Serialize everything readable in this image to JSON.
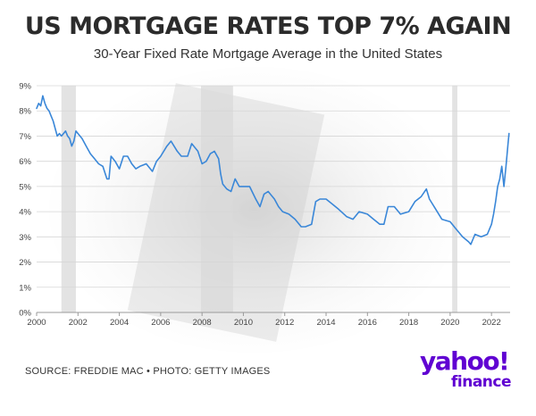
{
  "header": {
    "title": "US MORTGAGE RATES TOP 7% AGAIN",
    "subtitle": "30-Year Fixed Rate Mortgage Average in the United States"
  },
  "footer": {
    "source": "SOURCE: FREDDIE MAC • PHOTO: GETTY IMAGES",
    "logo_word": "yahoo!",
    "logo_sub": "finance"
  },
  "colors": {
    "line": "#3a87d8",
    "grid": "#d6d6d6",
    "recession": "#d9d9d9",
    "logo": "#6001d2"
  },
  "chart_data": {
    "type": "line",
    "title": "US MORTGAGE RATES TOP 7% AGAIN",
    "subtitle": "30-Year Fixed Rate Mortgage Average in the United States",
    "xlabel": "",
    "ylabel": "",
    "xlim": [
      2000,
      2022.9
    ],
    "ylim": [
      0,
      9
    ],
    "x_ticks": [
      2000,
      2002,
      2004,
      2006,
      2008,
      2010,
      2012,
      2014,
      2016,
      2018,
      2020,
      2022
    ],
    "y_ticks": [
      0,
      1,
      2,
      3,
      4,
      5,
      6,
      7,
      8,
      9
    ],
    "y_tick_labels": [
      "0%",
      "1%",
      "2%",
      "3%",
      "4%",
      "5%",
      "6%",
      "7%",
      "8%",
      "9%"
    ],
    "grid": true,
    "legend": "none",
    "shaded_periods": [
      [
        2001.2,
        2001.9
      ],
      [
        2007.95,
        2009.5
      ],
      [
        2020.1,
        2020.35
      ]
    ],
    "series": [
      {
        "x": [
          2000.0,
          2000.1,
          2000.2,
          2000.3,
          2000.4,
          2000.5,
          2000.6,
          2000.7,
          2000.8,
          2000.9,
          2001.0,
          2001.1,
          2001.2,
          2001.3,
          2001.4,
          2001.5,
          2001.6,
          2001.7,
          2001.8,
          2001.9,
          2002.0,
          2002.2,
          2002.4,
          2002.6,
          2002.8,
          2003.0,
          2003.2,
          2003.4,
          2003.5,
          2003.6,
          2003.8,
          2004.0,
          2004.2,
          2004.4,
          2004.6,
          2004.8,
          2005.0,
          2005.3,
          2005.6,
          2005.8,
          2006.0,
          2006.3,
          2006.5,
          2006.8,
          2007.0,
          2007.3,
          2007.5,
          2007.8,
          2008.0,
          2008.2,
          2008.4,
          2008.6,
          2008.8,
          2008.9,
          2009.0,
          2009.2,
          2009.4,
          2009.6,
          2009.8,
          2010.0,
          2010.3,
          2010.6,
          2010.8,
          2011.0,
          2011.2,
          2011.5,
          2011.7,
          2011.9,
          2012.2,
          2012.5,
          2012.8,
          2013.0,
          2013.3,
          2013.5,
          2013.7,
          2014.0,
          2014.3,
          2014.6,
          2015.0,
          2015.3,
          2015.6,
          2016.0,
          2016.3,
          2016.6,
          2016.8,
          2017.0,
          2017.3,
          2017.6,
          2018.0,
          2018.3,
          2018.6,
          2018.85,
          2019.0,
          2019.3,
          2019.6,
          2020.0,
          2020.3,
          2020.6,
          2020.9,
          2021.0,
          2021.2,
          2021.5,
          2021.8,
          2022.0,
          2022.1,
          2022.2,
          2022.3,
          2022.4,
          2022.5,
          2022.6,
          2022.7,
          2022.8,
          2022.85
        ],
        "values": [
          8.1,
          8.3,
          8.2,
          8.6,
          8.3,
          8.1,
          8.0,
          7.8,
          7.6,
          7.3,
          7.0,
          7.1,
          7.0,
          7.1,
          7.2,
          7.0,
          6.9,
          6.6,
          6.8,
          7.2,
          7.1,
          6.9,
          6.6,
          6.3,
          6.1,
          5.9,
          5.8,
          5.3,
          5.3,
          6.2,
          6.0,
          5.7,
          6.2,
          6.2,
          5.9,
          5.7,
          5.8,
          5.9,
          5.6,
          6.0,
          6.2,
          6.6,
          6.8,
          6.4,
          6.2,
          6.2,
          6.7,
          6.4,
          5.9,
          6.0,
          6.3,
          6.4,
          6.1,
          5.5,
          5.1,
          4.9,
          4.8,
          5.3,
          5.0,
          5.0,
          5.0,
          4.5,
          4.2,
          4.7,
          4.8,
          4.5,
          4.2,
          4.0,
          3.9,
          3.7,
          3.4,
          3.4,
          3.5,
          4.4,
          4.5,
          4.5,
          4.3,
          4.1,
          3.8,
          3.7,
          4.0,
          3.9,
          3.7,
          3.5,
          3.5,
          4.2,
          4.2,
          3.9,
          4.0,
          4.4,
          4.6,
          4.9,
          4.5,
          4.1,
          3.7,
          3.6,
          3.3,
          3.0,
          2.8,
          2.7,
          3.1,
          3.0,
          3.1,
          3.5,
          3.9,
          4.4,
          5.0,
          5.3,
          5.8,
          5.0,
          5.8,
          6.7,
          7.1
        ]
      }
    ]
  }
}
